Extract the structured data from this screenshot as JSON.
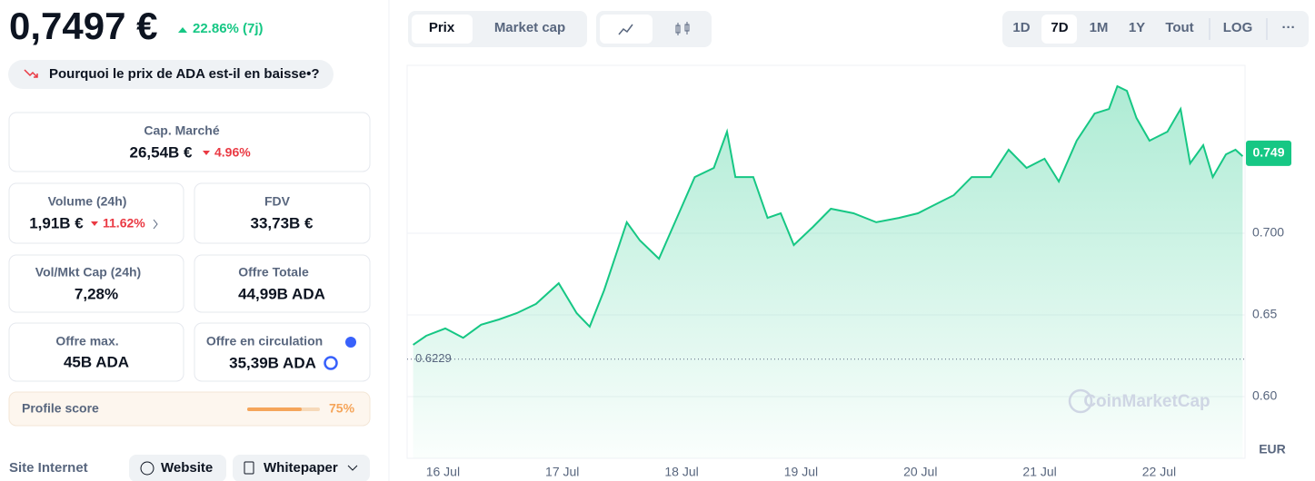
{
  "header": {
    "price": "0,7497 €",
    "change": "22.86% (7j)",
    "question": "Pourquoi le prix de ADA est-il en baisse•?"
  },
  "stats": [
    {
      "label": "Cap. Marché",
      "value": "26,54B €",
      "change": "4.96%"
    },
    {
      "label": "Volume (24h)",
      "value": "1,91B €",
      "change": "11.62%"
    },
    {
      "label": "FDV",
      "value": "33,73B €"
    },
    {
      "label": "Vol/Mkt Cap (24h)",
      "value": "7,28%"
    },
    {
      "label": "Offre Totale",
      "value": "44,99B ADA"
    },
    {
      "label": "Offre max.",
      "value": "45B ADA"
    },
    {
      "label": "Offre en circulation",
      "value": "35,39B ADA"
    }
  ],
  "profile": {
    "label": "Profile score",
    "value": "75%"
  },
  "links": {
    "label": "Site Internet",
    "website": "Website",
    "whitepaper": "Whitepaper"
  },
  "toolbar": {
    "tabs": [
      "Prix",
      "Market cap"
    ],
    "ranges": [
      "1D",
      "7D",
      "1M",
      "1Y",
      "Tout"
    ],
    "log": "LOG",
    "more": "···"
  },
  "chart_data": {
    "type": "line",
    "color": "#16c784",
    "x": [
      -0.25,
      -0.14,
      0.02,
      0.17,
      0.32,
      0.47,
      0.62,
      0.78,
      0.97,
      1.12,
      1.23,
      1.35,
      1.54,
      1.65,
      1.81,
      1.96,
      2.11,
      2.27,
      2.38,
      2.45,
      2.6,
      2.72,
      2.83,
      2.94,
      3.1,
      3.25,
      3.44,
      3.63,
      3.82,
      3.98,
      4.13,
      4.28,
      4.43,
      4.59,
      4.74,
      4.89,
      5.04,
      5.16,
      5.31,
      5.46,
      5.58,
      5.65,
      5.73,
      5.81,
      5.92,
      6.07,
      6.18,
      6.26,
      6.37,
      6.45,
      6.56,
      6.64,
      6.7
    ],
    "values": [
      0.6317,
      0.6372,
      0.6417,
      0.636,
      0.644,
      0.6472,
      0.6511,
      0.6567,
      0.6694,
      0.6511,
      0.6428,
      0.665,
      0.7067,
      0.6956,
      0.6844,
      0.7094,
      0.7344,
      0.74,
      0.7622,
      0.7344,
      0.7344,
      0.7094,
      0.7122,
      0.6928,
      0.7039,
      0.715,
      0.7122,
      0.7067,
      0.7094,
      0.7122,
      0.7178,
      0.7233,
      0.7344,
      0.7344,
      0.7511,
      0.74,
      0.7456,
      0.7317,
      0.7567,
      0.7733,
      0.7761,
      0.79,
      0.7872,
      0.7706,
      0.7567,
      0.7622,
      0.7761,
      0.7428,
      0.7539,
      0.7344,
      0.7483,
      0.7511,
      0.7472
    ],
    "xlim": [
      -0.3,
      6.72
    ],
    "xticks": [
      {
        "value": 0,
        "label": "16 Jul"
      },
      {
        "value": 1,
        "label": "17 Jul"
      },
      {
        "value": 2,
        "label": "18 Jul"
      },
      {
        "value": 3,
        "label": "19 Jul"
      },
      {
        "value": 4,
        "label": "20 Jul"
      },
      {
        "value": 5,
        "label": "21 Jul"
      },
      {
        "value": 6,
        "label": "22 Jul"
      }
    ],
    "ylim": [
      0.5622,
      0.8028
    ],
    "yticks": [
      {
        "value": 0.6,
        "label": "0.60"
      },
      {
        "value": 0.65,
        "label": "0.65"
      },
      {
        "value": 0.7,
        "label": "0.700"
      }
    ],
    "reference_line": 0.6229,
    "last_value": 0.749,
    "currency": "EUR",
    "watermark": "CoinMarketCap",
    "grid": true
  }
}
